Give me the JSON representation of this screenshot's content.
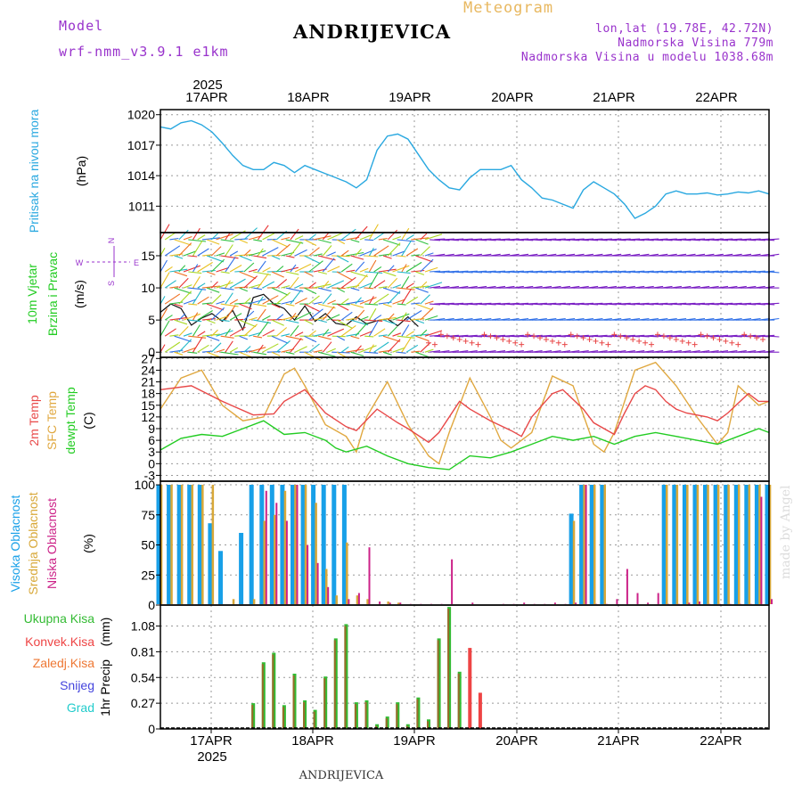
{
  "header": {
    "model_label": "Model",
    "model_name": "wrf-nmm_v3.9.1 e1km",
    "title": "ANDRIJEVICA",
    "subtitle": "Meteogram",
    "lonlat": "lon,lat (19.78E, 42.72N)",
    "elevation": "Nadmorska Visina 779m",
    "model_elevation": "Nadmorska Visina u modelu 1038.68m",
    "footer_title": "ANDRIJEVICA",
    "credit": "made by Angel"
  },
  "time_axis": {
    "top_year": "2025",
    "bottom_year": "2025",
    "dates": [
      "17APR",
      "18APR",
      "19APR",
      "20APR",
      "21APR",
      "22APR"
    ]
  },
  "colors": {
    "pressure": "#29a8e0",
    "temp2m": "#e84848",
    "sfc": "#e0a840",
    "dew": "#22cc22",
    "high_cloud": "#18a0e8",
    "mid_cloud": "#d8a838",
    "low_cloud": "#cc2288",
    "rain": "#33bb33",
    "conv": "#ee4444",
    "frozen": "#ee7733",
    "snow": "#4444dd",
    "hail": "#22cccc",
    "wind_purple": "#7a1fc4"
  },
  "chart_data": [
    {
      "type": "line",
      "ylabel": "Pritisak na nivou mora",
      "unit": "(hPa)",
      "yticks": [
        1011,
        1014,
        1017,
        1020
      ],
      "ylim": [
        1008.4,
        1020.5
      ],
      "series": [
        {
          "x": [
            0,
            1,
            2,
            3,
            4,
            5,
            6,
            7,
            8,
            9,
            10,
            11,
            12,
            13,
            14,
            15,
            16,
            17,
            18,
            19,
            20,
            21,
            22,
            23,
            24,
            25,
            26,
            27,
            28,
            29,
            30,
            31,
            32,
            33,
            34,
            35,
            36,
            37,
            38,
            39,
            40,
            41,
            42,
            43,
            44,
            45,
            46,
            47,
            48,
            49,
            50,
            51,
            52,
            53,
            54,
            55,
            56,
            57,
            58,
            59
          ],
          "values": [
            1018.8,
            1018.6,
            1019.2,
            1019.4,
            1019.0,
            1018.3,
            1017.2,
            1016.0,
            1015.0,
            1014.6,
            1014.6,
            1015.3,
            1015.0,
            1014.3,
            1015.0,
            1014.6,
            1014.2,
            1013.8,
            1013.4,
            1012.8,
            1013.6,
            1016.5,
            1017.9,
            1018.1,
            1017.6,
            1016.1,
            1014.6,
            1013.6,
            1012.8,
            1012.6,
            1013.8,
            1014.6,
            1014.6,
            1014.6,
            1015.0,
            1013.6,
            1012.8,
            1011.8,
            1011.6,
            1011.2,
            1010.8,
            1012.6,
            1013.4,
            1012.8,
            1012.2,
            1011.2,
            1009.8,
            1010.3,
            1011.0,
            1012.2,
            1012.5,
            1012.2,
            1012.2,
            1012.3,
            1012.1,
            1012.2,
            1012.4,
            1012.3,
            1012.5,
            1012.2
          ]
        }
      ]
    },
    {
      "type": "line",
      "ylabel": "10m Vjetar",
      "ylabel2": "Brzina i Pravac",
      "unit": "(m/s)",
      "compass": {
        "n": "N",
        "w": "W",
        "e": "E",
        "s": "S"
      },
      "yticks": [
        0,
        5,
        10,
        15
      ],
      "ylim": [
        -0.8,
        18.6
      ],
      "series": [
        {
          "name": "speed",
          "x": [
            0,
            1,
            2,
            3,
            4,
            5,
            6,
            7,
            8,
            9,
            10,
            11,
            12,
            13,
            14,
            15,
            16,
            17,
            18,
            19,
            20,
            21,
            22,
            23,
            24,
            25
          ],
          "values": [
            6.2,
            7.5,
            6.8,
            4.2,
            5.3,
            6.0,
            4.8,
            6.5,
            3.5,
            8.5,
            9.0,
            7.5,
            6.8,
            5.0,
            7.2,
            4.8,
            6.0,
            4.5,
            4.2,
            5.5,
            4.4,
            4.9,
            5.2,
            4.1,
            5.5,
            4.0
          ]
        }
      ]
    },
    {
      "type": "line",
      "ylabel": "2m Temp",
      "ylabel2": "SFC Temp",
      "ylabel3": "dewpt Temp",
      "unit": "(C)",
      "yticks": [
        -3,
        0,
        3,
        6,
        9,
        12,
        15,
        18,
        21,
        24,
        27
      ],
      "ylim": [
        -4.5,
        27.3
      ],
      "series": [
        {
          "name": "2m Temp",
          "x": [
            0,
            3,
            6,
            9,
            11,
            12,
            14,
            16,
            18,
            19,
            21,
            23,
            24,
            26,
            27,
            29,
            30,
            32,
            34,
            35,
            36,
            38,
            39,
            41,
            42,
            44,
            45,
            46,
            47,
            48,
            49,
            50,
            51,
            53,
            54,
            55,
            57,
            58,
            59
          ],
          "values": [
            19,
            20,
            16,
            12.5,
            12.8,
            16,
            19,
            13,
            9.5,
            8.5,
            14,
            10.5,
            9,
            5.5,
            8,
            16,
            14,
            11,
            8.5,
            7,
            12,
            18,
            19,
            14,
            10.5,
            7.5,
            13,
            18,
            20,
            19,
            16,
            14,
            13,
            12,
            11,
            13,
            18,
            16,
            16
          ]
        },
        {
          "name": "SFC Temp",
          "x": [
            0,
            2,
            4,
            6,
            8,
            10,
            12,
            13,
            14,
            16,
            18,
            19,
            20,
            22,
            24,
            26,
            27,
            28,
            30,
            32,
            33,
            34,
            36,
            38,
            40,
            42,
            43,
            44,
            46,
            48,
            50,
            52,
            54,
            55,
            56,
            58,
            59
          ],
          "values": [
            14,
            22,
            24,
            15,
            11,
            12,
            23,
            24.5,
            20,
            10,
            7,
            3,
            12,
            21,
            10,
            2,
            0,
            8,
            22,
            12,
            6,
            4,
            8,
            22.5,
            20,
            5,
            3,
            8,
            24,
            26,
            20,
            12,
            5,
            8,
            20,
            15,
            16
          ]
        },
        {
          "name": "dewpt Temp",
          "x": [
            0,
            2,
            4,
            6,
            8,
            10,
            12,
            14,
            16,
            17,
            18,
            20,
            22,
            24,
            26,
            28,
            30,
            32,
            34,
            36,
            38,
            40,
            42,
            44,
            46,
            48,
            50,
            52,
            54,
            56,
            58,
            59
          ],
          "values": [
            3.5,
            6.5,
            7.5,
            7,
            9,
            11,
            7.5,
            8,
            6,
            4,
            3,
            4.5,
            2,
            0,
            -1,
            -1.5,
            2,
            1.5,
            3,
            5,
            7,
            6,
            7,
            5,
            7,
            8,
            7,
            6,
            5,
            7,
            9,
            8
          ]
        }
      ]
    },
    {
      "type": "bar",
      "ylabel": "Visoka Oblacnost",
      "ylabel2": "Srednja Oblacnost",
      "ylabel3": "Niska Oblacnost",
      "unit": "(%)",
      "yticks": [
        0,
        25,
        50,
        75,
        100
      ],
      "ylim": [
        0,
        103
      ],
      "series": [
        {
          "name": "Visoka Oblacnost",
          "x": [
            0,
            1,
            2,
            3,
            4,
            5,
            6,
            8,
            9,
            10,
            11,
            12,
            13,
            14,
            15,
            16,
            17,
            18,
            40,
            41,
            42,
            43,
            49,
            50,
            51,
            52,
            53,
            54,
            55,
            56,
            57,
            58,
            59
          ],
          "values": [
            100,
            100,
            100,
            100,
            100,
            68,
            45,
            60,
            100,
            100,
            100,
            100,
            100,
            100,
            100,
            100,
            100,
            100,
            76,
            100,
            100,
            100,
            100,
            100,
            100,
            100,
            100,
            100,
            100,
            100,
            100,
            100,
            100
          ]
        },
        {
          "name": "Srednja Oblacnost",
          "x": [
            0,
            1,
            2,
            3,
            4,
            5,
            7,
            9,
            10,
            11,
            12,
            13,
            14,
            15,
            16,
            17,
            18,
            19,
            20,
            22,
            23,
            40,
            41,
            42,
            43,
            49,
            50,
            51,
            52,
            53,
            54,
            55,
            56,
            57,
            58,
            59
          ],
          "values": [
            100,
            100,
            100,
            100,
            100,
            100,
            5,
            5,
            70,
            75,
            95,
            100,
            100,
            85,
            30,
            8,
            52,
            8,
            5,
            3,
            2,
            70,
            100,
            100,
            100,
            100,
            100,
            100,
            100,
            100,
            100,
            100,
            100,
            100,
            100,
            100
          ]
        },
        {
          "name": "Niska Oblacnost",
          "x": [
            10,
            11,
            12,
            13,
            14,
            15,
            16,
            18,
            19,
            20,
            21,
            22,
            23,
            24,
            25,
            26,
            27,
            28,
            30,
            33,
            34,
            35,
            36,
            37,
            38,
            39,
            40,
            41,
            42,
            43,
            44,
            45,
            46,
            47,
            48,
            49,
            50,
            51,
            52,
            53,
            54,
            55,
            56,
            57,
            58,
            59
          ],
          "values": [
            95,
            85,
            70,
            100,
            50,
            35,
            15,
            5,
            10,
            48,
            3,
            2,
            2,
            1,
            1,
            1,
            1,
            38,
            2,
            1,
            1,
            2,
            1,
            1,
            2,
            1,
            2,
            100,
            1,
            1,
            5,
            30,
            10,
            2,
            10,
            1,
            1,
            2,
            3,
            1,
            1,
            1,
            1,
            1,
            90,
            5
          ]
        }
      ]
    },
    {
      "type": "bar",
      "ylabel": "1hr Precip",
      "unit": "(mm)",
      "legend": [
        "Ukupna Kisa",
        "Konvek.Kisa",
        "Zaledj.Kisa",
        "Snijeg",
        "Grad"
      ],
      "yticks": [
        0,
        0.27,
        0.54,
        0.81,
        1.08
      ],
      "tick_labels": [
        "0",
        "0.27",
        "0.54",
        "0.81",
        "1.08"
      ],
      "ylim": [
        0,
        1.3
      ],
      "series": [
        {
          "name": "Ukupna Kisa",
          "x": [
            9,
            10,
            11,
            12,
            13,
            14,
            15,
            16,
            17,
            18,
            19,
            20,
            21,
            22,
            23,
            24,
            25,
            26,
            27,
            28,
            29
          ],
          "values": [
            0.27,
            0.7,
            0.8,
            0.25,
            0.58,
            0.3,
            0.2,
            0.55,
            0.95,
            1.1,
            0.28,
            0.3,
            0.05,
            0.13,
            0.28,
            0.05,
            0.33,
            0.1,
            0.95,
            1.28,
            0.6
          ]
        },
        {
          "name": "Konvek.Kisa",
          "x": [
            30,
            31
          ],
          "values": [
            0.85,
            0.38
          ]
        }
      ]
    }
  ]
}
